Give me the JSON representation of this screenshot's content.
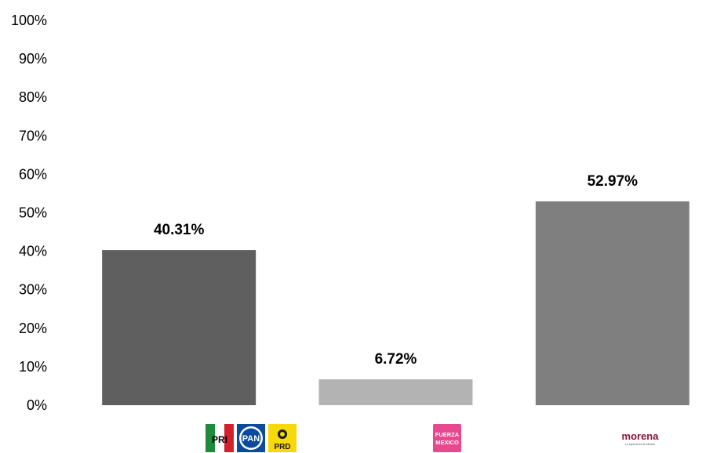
{
  "chart_data": {
    "type": "bar",
    "categories": [
      "PRI-PAN-PRD",
      "Fuerza México",
      "Morena"
    ],
    "values": [
      40.31,
      6.72,
      52.97
    ],
    "value_labels": [
      "40.31%",
      "6.72%",
      "52.97%"
    ],
    "colors": [
      "#5f5f5f",
      "#b3b3b3",
      "#7f7f7f"
    ],
    "ylim": [
      0,
      100
    ],
    "y_ticks": [
      "0%",
      "10%",
      "20%",
      "30%",
      "40%",
      "50%",
      "60%",
      "70%",
      "80%",
      "90%",
      "100%"
    ],
    "title": "",
    "xlabel": "",
    "ylabel": "",
    "grid": false,
    "legend": "none"
  },
  "logos": {
    "coalition": {
      "icon": "pri-pan-prd-logos",
      "pri_text": "PRI",
      "pan_text": "PAN",
      "prd_text": "PRD",
      "colors": {
        "pri_green": "#1f8a3b",
        "pri_red": "#d3202a",
        "pan_blue": "#0b4a9c",
        "prd_yellow": "#f6d80b"
      }
    },
    "fuerza": {
      "icon": "fuerza-mexico-logo",
      "line1": "FUERZA",
      "line2": "MEXICO",
      "color": "#e8488e"
    },
    "morena": {
      "icon": "morena-logo",
      "text": "morena",
      "tagline": "La esperanza de México",
      "color": "#8a1538"
    }
  }
}
